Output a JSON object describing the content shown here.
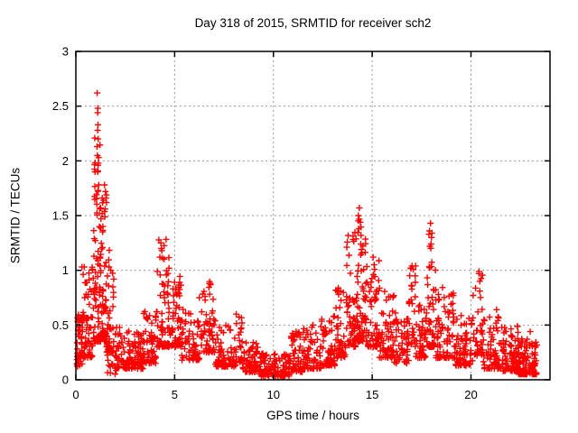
{
  "chart_data": {
    "type": "scatter",
    "title": "Day 318 of 2015, SRMTID for receiver sch2",
    "xlabel": "GPS time / hours",
    "ylabel": "SRMTID / TECUs",
    "xlim": [
      0,
      24
    ],
    "ylim": [
      0,
      3
    ],
    "xticks": [
      0,
      5,
      10,
      15,
      20
    ],
    "xtick_labels": [
      "0",
      "5",
      "10",
      "15",
      "20"
    ],
    "yticks": [
      0,
      0.5,
      1,
      1.5,
      2,
      2.5,
      3
    ],
    "ytick_labels": [
      "0",
      "0.5",
      "1",
      "1.5",
      "2",
      "2.5",
      "3"
    ],
    "grid": "dotted",
    "legend": "none",
    "marker": "plus",
    "marker_color": "#ff0000",
    "grid_color": "#999999",
    "border_color": "#000000",
    "background": "#ffffff",
    "series_name": "SRMTID",
    "x_data_start": 0.05,
    "x_data_end": 23.35,
    "density_bands": [
      {
        "x0": 0.05,
        "x1": 0.35,
        "n": 45,
        "y_min": 0.12,
        "y_max": 0.6,
        "skew": 1.8
      },
      {
        "x0": 0.3,
        "x1": 0.9,
        "n": 70,
        "y_min": 0.2,
        "y_max": 1.05,
        "skew": 2.0
      },
      {
        "x0": 0.9,
        "x1": 1.25,
        "n": 85,
        "y_min": 0.35,
        "y_max": 2.3,
        "skew": 2.6
      },
      {
        "x0": 1.25,
        "x1": 1.55,
        "n": 60,
        "y_min": 0.35,
        "y_max": 1.8,
        "skew": 2.2
      },
      {
        "x0": 1.55,
        "x1": 1.95,
        "n": 45,
        "y_min": 0.25,
        "y_max": 1.3,
        "skew": 2.2
      },
      {
        "x0": 1.5,
        "x1": 2.1,
        "n": 12,
        "y_min": 0.05,
        "y_max": 0.3,
        "skew": 1.5
      },
      {
        "x0": 1.95,
        "x1": 2.7,
        "n": 55,
        "y_min": 0.1,
        "y_max": 0.5,
        "skew": 1.8
      },
      {
        "x0": 2.7,
        "x1": 3.4,
        "n": 65,
        "y_min": 0.1,
        "y_max": 0.45,
        "skew": 1.8
      },
      {
        "x0": 3.4,
        "x1": 4.1,
        "n": 60,
        "y_min": 0.15,
        "y_max": 0.65,
        "skew": 1.8
      },
      {
        "x0": 4.1,
        "x1": 4.75,
        "n": 75,
        "y_min": 0.3,
        "y_max": 1.3,
        "skew": 2.1
      },
      {
        "x0": 4.75,
        "x1": 5.35,
        "n": 55,
        "y_min": 0.3,
        "y_max": 0.95,
        "skew": 2.0
      },
      {
        "x0": 5.35,
        "x1": 6.4,
        "n": 70,
        "y_min": 0.18,
        "y_max": 0.65,
        "skew": 1.9
      },
      {
        "x0": 6.4,
        "x1": 7.05,
        "n": 55,
        "y_min": 0.25,
        "y_max": 0.9,
        "skew": 2.0
      },
      {
        "x0": 7.05,
        "x1": 8.1,
        "n": 70,
        "y_min": 0.12,
        "y_max": 0.5,
        "skew": 1.8
      },
      {
        "x0": 8.1,
        "x1": 8.45,
        "n": 25,
        "y_min": 0.15,
        "y_max": 0.6,
        "skew": 1.6
      },
      {
        "x0": 8.45,
        "x1": 9.3,
        "n": 60,
        "y_min": 0.07,
        "y_max": 0.35,
        "skew": 1.8
      },
      {
        "x0": 9.3,
        "x1": 10.9,
        "n": 115,
        "y_min": 0.03,
        "y_max": 0.25,
        "skew": 1.6
      },
      {
        "x0": 10.9,
        "x1": 11.5,
        "n": 50,
        "y_min": 0.07,
        "y_max": 0.45,
        "skew": 1.9
      },
      {
        "x0": 11.5,
        "x1": 12.4,
        "n": 65,
        "y_min": 0.1,
        "y_max": 0.48,
        "skew": 1.9
      },
      {
        "x0": 12.4,
        "x1": 13.15,
        "n": 60,
        "y_min": 0.13,
        "y_max": 0.6,
        "skew": 1.9
      },
      {
        "x0": 13.15,
        "x1": 13.65,
        "n": 45,
        "y_min": 0.2,
        "y_max": 0.85,
        "skew": 1.9
      },
      {
        "x0": 13.65,
        "x1": 14.15,
        "n": 55,
        "y_min": 0.3,
        "y_max": 1.35,
        "skew": 2.0
      },
      {
        "x0": 14.15,
        "x1": 14.7,
        "n": 75,
        "y_min": 0.35,
        "y_max": 1.5,
        "skew": 1.9
      },
      {
        "x0": 14.7,
        "x1": 15.35,
        "n": 60,
        "y_min": 0.3,
        "y_max": 1.12,
        "skew": 2.0
      },
      {
        "x0": 15.35,
        "x1": 16.1,
        "n": 60,
        "y_min": 0.2,
        "y_max": 0.88,
        "skew": 2.0
      },
      {
        "x0": 16.1,
        "x1": 16.85,
        "n": 55,
        "y_min": 0.15,
        "y_max": 0.62,
        "skew": 1.9
      },
      {
        "x0": 16.85,
        "x1": 17.2,
        "n": 28,
        "y_min": 0.3,
        "y_max": 1.05,
        "skew": 1.7
      },
      {
        "x0": 17.2,
        "x1": 17.7,
        "n": 45,
        "y_min": 0.2,
        "y_max": 0.7,
        "skew": 1.9
      },
      {
        "x0": 17.7,
        "x1": 18.2,
        "n": 50,
        "y_min": 0.3,
        "y_max": 1.42,
        "skew": 2.2
      },
      {
        "x0": 18.2,
        "x1": 19.2,
        "n": 85,
        "y_min": 0.2,
        "y_max": 0.85,
        "skew": 2.0
      },
      {
        "x0": 19.2,
        "x1": 20.1,
        "n": 70,
        "y_min": 0.13,
        "y_max": 0.6,
        "skew": 1.9
      },
      {
        "x0": 20.1,
        "x1": 20.6,
        "n": 40,
        "y_min": 0.22,
        "y_max": 1.0,
        "skew": 2.0
      },
      {
        "x0": 20.6,
        "x1": 21.5,
        "n": 70,
        "y_min": 0.1,
        "y_max": 0.58,
        "skew": 1.9
      },
      {
        "x0": 21.5,
        "x1": 22.4,
        "n": 85,
        "y_min": 0.08,
        "y_max": 0.5,
        "skew": 2.0
      },
      {
        "x0": 22.4,
        "x1": 23.35,
        "n": 110,
        "y_min": 0.05,
        "y_max": 0.38,
        "skew": 2.0
      }
    ],
    "highlight_points": [
      [
        1.08,
        2.62
      ],
      [
        1.11,
        2.48
      ],
      [
        1.1,
        2.44
      ],
      [
        1.12,
        2.33
      ],
      [
        1.1,
        2.28
      ],
      [
        1.13,
        2.2
      ],
      [
        1.09,
        2.05
      ],
      [
        1.14,
        1.98
      ],
      [
        1.12,
        1.96
      ],
      [
        1.1,
        1.9
      ],
      [
        1.16,
        1.78
      ],
      [
        1.45,
        1.78
      ],
      [
        1.5,
        1.72
      ],
      [
        1.52,
        1.66
      ],
      [
        1.55,
        1.62
      ],
      [
        1.48,
        1.56
      ],
      [
        1.33,
        1.52
      ],
      [
        1.27,
        1.47
      ],
      [
        4.3,
        1.25
      ],
      [
        4.35,
        1.18
      ],
      [
        4.25,
        1.12
      ],
      [
        14.35,
        1.57
      ],
      [
        14.3,
        1.5
      ],
      [
        14.4,
        1.44
      ],
      [
        14.32,
        1.38
      ],
      [
        17.95,
        1.43
      ],
      [
        17.9,
        1.36
      ],
      [
        18.0,
        1.3
      ],
      [
        17.92,
        1.22
      ],
      [
        15.05,
        1.12
      ],
      [
        15.1,
        1.05
      ],
      [
        16.95,
        1.02
      ],
      [
        16.9,
        0.95
      ],
      [
        20.4,
        0.97
      ],
      [
        20.45,
        0.9
      ],
      [
        13.3,
        0.78
      ],
      [
        6.8,
        0.88
      ],
      [
        6.25,
        0.75
      ],
      [
        11.15,
        0.44
      ],
      [
        8.12,
        0.6
      ],
      [
        21.3,
        0.64
      ],
      [
        12.0,
        0.5
      ],
      [
        23.0,
        0.44
      ],
      [
        0.15,
        0.55
      ],
      [
        0.45,
        0.75
      ]
    ]
  }
}
